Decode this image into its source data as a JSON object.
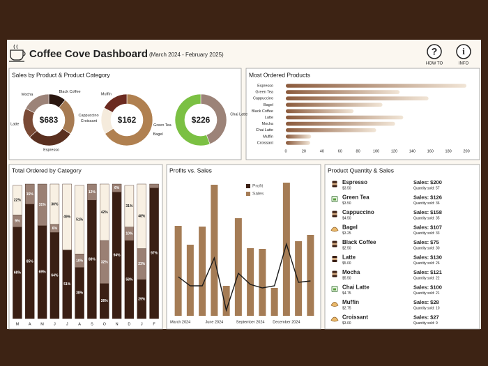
{
  "header": {
    "title": "Coffee Cove Dashboard",
    "subtitle": "(March 2024 - February 2025)",
    "buttons": [
      "HOW TO",
      "INFO"
    ]
  },
  "chart_data": [
    {
      "type": "donut",
      "title": "Sales by Product & Product Category",
      "center_label": "$683",
      "categories": [
        "Black Coffee",
        "Cappuccino",
        "Espresso",
        "Latte",
        "Mocha"
      ],
      "values": [
        75,
        158,
        200,
        130,
        121
      ],
      "colors": [
        "#2b1710",
        "#a77b52",
        "#5a3020",
        "#7a4a35",
        "#9c8378"
      ]
    },
    {
      "type": "donut",
      "center_label": "$162",
      "categories": [
        "Bagel",
        "Croissant",
        "Muffin"
      ],
      "values": [
        107,
        27,
        28
      ],
      "colors": [
        "#b08050",
        "#f5ebdc",
        "#6b2a20"
      ]
    },
    {
      "type": "donut",
      "center_label": "$226",
      "categories": [
        "Chai Latte",
        "Green Tea"
      ],
      "values": [
        100,
        126
      ],
      "colors": [
        "#9c8378",
        "#7bc043"
      ]
    },
    {
      "type": "hbar",
      "title": "Most Ordered Products",
      "categories": [
        "Espresso",
        "Green Tea",
        "Cappuccino",
        "Bagel",
        "Black Coffee",
        "Latte",
        "Mocha",
        "Chai Latte",
        "Muffin",
        "Croissant"
      ],
      "values": [
        200,
        126,
        158,
        107,
        75,
        130,
        121,
        100,
        28,
        27
      ],
      "color": "#8b5a3c",
      "xlim": [
        0,
        210
      ],
      "xticks": [
        0,
        20,
        40,
        60,
        80,
        100,
        120,
        140,
        160,
        180,
        200
      ]
    },
    {
      "type": "stacked100",
      "title": "Total Ordered by Category",
      "categories": [
        "M",
        "A",
        "M",
        "J",
        "J",
        "A",
        "S",
        "O",
        "N",
        "D",
        "J",
        "F"
      ],
      "ylim": [
        0,
        100
      ],
      "series": [
        {
          "color": "#3a1f14",
          "values": [
            68,
            85,
            69,
            64,
            51,
            38,
            88,
            26,
            94,
            58,
            29,
            97
          ],
          "value_labels": [
            "68%",
            "85%",
            "69%",
            "64%",
            "51%",
            "38%",
            "88%",
            "26%",
            "94%",
            "58%",
            "29%",
            "97%"
          ]
        },
        {
          "color": "#9a8074",
          "values": [
            9,
            15,
            31,
            6,
            0,
            10,
            12,
            32,
            6,
            10,
            23,
            3
          ],
          "value_labels": [
            "9%",
            "15%",
            "31%",
            "6%",
            null,
            "10%",
            "12%",
            "32%",
            "6%",
            "10%",
            "23%",
            null
          ]
        },
        {
          "color": "#f8f0e3",
          "values": [
            22,
            0,
            0,
            30,
            49,
            51,
            0,
            42,
            0,
            31,
            48,
            0
          ],
          "value_labels": [
            "22%",
            null,
            null,
            "30%",
            "49%",
            "51%",
            null,
            "42%",
            null,
            "31%",
            "48%",
            null
          ]
        }
      ]
    },
    {
      "type": "combo",
      "title": "Profits vs. Sales",
      "categories": [
        "March 2024",
        null,
        null,
        "June 2024",
        null,
        null,
        "September 2024",
        null,
        null,
        "December 2024",
        null,
        null
      ],
      "ylim": [
        0,
        200
      ],
      "series": [
        {
          "name": "Profit",
          "color": "#1a1a1a",
          "legend_color": "#3a1f14",
          "values": [
            56,
            43,
            43,
            83,
            8,
            61,
            45,
            40,
            43,
            103,
            48,
            50
          ]
        },
        {
          "name": "Sales",
          "color": "#a57c55",
          "values": [
            129,
            102,
            128,
            188,
            43,
            140,
            97,
            96,
            40,
            191,
            107,
            116
          ]
        }
      ]
    }
  ],
  "table": {
    "title": "Product Quantity & Sales",
    "rows": [
      {
        "name": "Espresso",
        "price": "$3.50",
        "sales": "Sales: $200",
        "quantity": "Quantity sold: 57"
      },
      {
        "name": "Green Tea",
        "price": "$3.50",
        "sales": "Sales: $126",
        "quantity": "Quantity sold: 36"
      },
      {
        "name": "Cappuccino",
        "price": "$4.50",
        "sales": "Sales: $158",
        "quantity": "Quantity sold: 35"
      },
      {
        "name": "Bagel",
        "price": "$3.25",
        "sales": "Sales: $107",
        "quantity": "Quantity sold: 33"
      },
      {
        "name": "Black Coffee",
        "price": "$2.50",
        "sales": "Sales: $75",
        "quantity": "Quantity sold: 30"
      },
      {
        "name": "Latte",
        "price": "$5.00",
        "sales": "Sales: $130",
        "quantity": "Quantity sold: 26"
      },
      {
        "name": "Mocha",
        "price": "$5.50",
        "sales": "Sales: $121",
        "quantity": "Quantity sold: 22"
      },
      {
        "name": "Chai Latte",
        "price": "$4.75",
        "sales": "Sales: $100",
        "quantity": "Quantity sold: 21"
      },
      {
        "name": "Muffin",
        "price": "$2.75",
        "sales": "Sales: $28",
        "quantity": "Quantity sold: 10"
      },
      {
        "name": "Croissant",
        "price": "$3.00",
        "sales": "Sales: $27",
        "quantity": "Quantity sold: 9"
      }
    ]
  }
}
